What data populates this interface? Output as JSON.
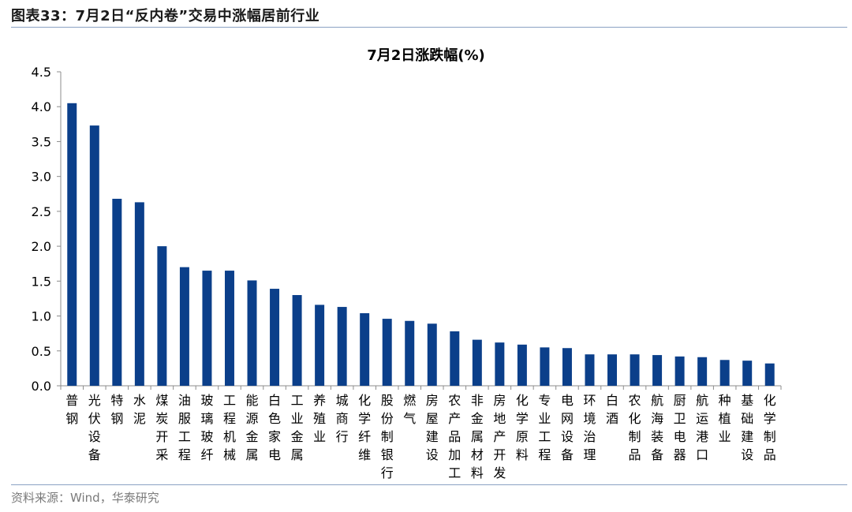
{
  "header": {
    "title": "图表33：7月2日“反内卷”交易中涨幅居前行业"
  },
  "footer": {
    "source": "资料来源：Wind，华泰研究"
  },
  "colors": {
    "bar": "#0b3f8a",
    "axis": "#8c8c8c",
    "rule": "#8aa1c4"
  },
  "chart_data": {
    "type": "bar",
    "title": "7月2日涨跌幅(%)",
    "xlabel": "",
    "ylabel": "",
    "ylim": [
      0,
      4.5
    ],
    "yticks": [
      "0.0",
      "0.5",
      "1.0",
      "1.5",
      "2.0",
      "2.5",
      "3.0",
      "3.5",
      "4.0",
      "4.5"
    ],
    "grid": false,
    "categories": [
      "普钢",
      "光伏设备",
      "特钢",
      "水泥",
      "煤炭开采",
      "油服工程",
      "玻璃玻纤",
      "工程机械",
      "能源金属",
      "白色家电",
      "工业金属",
      "养殖业",
      "城商行",
      "化学纤维",
      "股份制银行",
      "燃气",
      "房屋建设",
      "农产品加工",
      "非金属材料",
      "房地产开发",
      "化学原料",
      "专业工程",
      "电网设备",
      "环境治理",
      "白酒",
      "农化制品",
      "航海装备",
      "厨卫电器",
      "航运港口",
      "种植业",
      "基础建设",
      "化学制品"
    ],
    "values": [
      4.05,
      3.73,
      2.68,
      2.63,
      2.0,
      1.7,
      1.65,
      1.65,
      1.51,
      1.39,
      1.3,
      1.16,
      1.13,
      1.04,
      0.96,
      0.93,
      0.89,
      0.78,
      0.66,
      0.62,
      0.59,
      0.55,
      0.54,
      0.45,
      0.45,
      0.45,
      0.44,
      0.42,
      0.41,
      0.37,
      0.36,
      0.32
    ]
  }
}
